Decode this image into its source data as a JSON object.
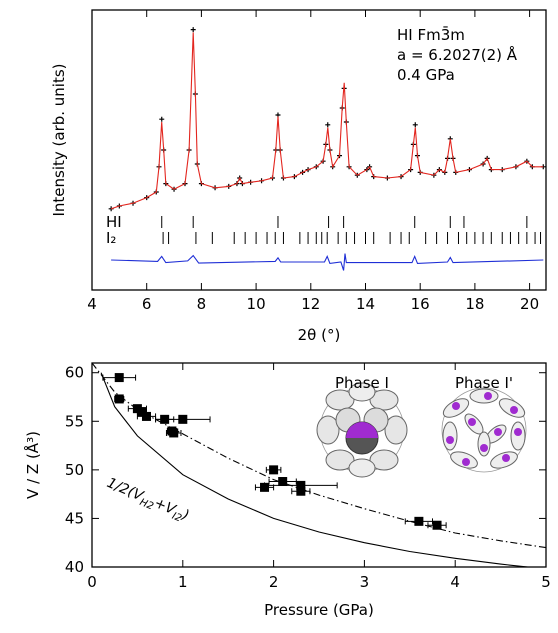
{
  "chart_data": [
    {
      "type": "line",
      "ylabel": "Intensity (arb. units)",
      "xlabel": "2θ (°)",
      "xlim": [
        4,
        20.6
      ],
      "ylim": [
        0,
        100
      ],
      "xticks": [
        4,
        6,
        8,
        10,
        12,
        14,
        16,
        18,
        20
      ],
      "annotations": [
        "HI Fm3̄m",
        "a = 6.2027(2) Å",
        "0.4 GPa"
      ],
      "x": [
        4.7,
        5.0,
        5.5,
        6.0,
        6.35,
        6.45,
        6.55,
        6.62,
        6.7,
        7.0,
        7.4,
        7.55,
        7.7,
        7.78,
        7.85,
        8.0,
        8.5,
        9.0,
        9.3,
        9.4,
        9.5,
        9.8,
        10.2,
        10.6,
        10.72,
        10.8,
        10.88,
        11.0,
        11.4,
        11.7,
        11.9,
        12.2,
        12.45,
        12.55,
        12.62,
        12.7,
        12.8,
        13.05,
        13.15,
        13.22,
        13.3,
        13.4,
        13.7,
        14.05,
        14.15,
        14.3,
        14.8,
        15.3,
        15.65,
        15.75,
        15.82,
        15.9,
        16.0,
        16.5,
        16.7,
        16.9,
        17.0,
        17.1,
        17.2,
        17.3,
        17.8,
        18.3,
        18.45,
        18.6,
        19.0,
        19.5,
        19.9,
        20.1,
        20.5
      ],
      "series": [
        {
          "style": "points",
          "color": "#000000",
          "values": [
            29,
            30,
            31,
            33,
            35,
            44,
            61,
            50,
            38,
            36,
            38,
            50,
            93,
            70,
            45,
            38,
            36.5,
            37,
            38,
            40,
            38,
            38.5,
            39,
            40,
            50,
            62.5,
            50,
            40,
            40.5,
            42,
            43,
            44,
            46,
            52,
            59,
            50,
            44,
            48,
            65,
            72,
            60,
            44,
            41,
            43,
            44,
            40.5,
            40,
            40.5,
            43,
            52,
            59,
            48,
            42,
            41,
            43,
            42,
            47,
            54,
            47,
            42,
            43,
            45,
            47,
            43,
            43,
            44,
            46,
            44,
            44
          ]
        },
        {
          "style": "line",
          "color": "#e3261f",
          "values": [
            29,
            30,
            31,
            33,
            35,
            44,
            60,
            50,
            38,
            36,
            38,
            50,
            92,
            70,
            45,
            38,
            36.5,
            37,
            38,
            40,
            38,
            38.5,
            39,
            40,
            50,
            62,
            50,
            40,
            40.5,
            42,
            43,
            44,
            46,
            52,
            58,
            50,
            44,
            48,
            65,
            74,
            60,
            44,
            41,
            43,
            44,
            40.5,
            40,
            40.5,
            43,
            52,
            58,
            48,
            42,
            41,
            43,
            42,
            47,
            54,
            47,
            42,
            43,
            45,
            47,
            43,
            43,
            44,
            46,
            44,
            44
          ]
        },
        {
          "style": "line",
          "color": "#1f2fd6",
          "x": [
            4.7,
            6.4,
            6.55,
            6.7,
            7.5,
            7.7,
            7.9,
            10.7,
            10.8,
            10.9,
            12.5,
            12.6,
            12.7,
            13.1,
            13.2,
            13.25,
            13.3,
            15.7,
            15.8,
            15.9,
            17.0,
            17.1,
            17.2,
            20.5
          ],
          "values": [
            10.7,
            10.2,
            12,
            9.8,
            10.4,
            12.3,
            9.6,
            10.2,
            11.5,
            10,
            10,
            12,
            9.5,
            10,
            7,
            13,
            9.8,
            9.8,
            12,
            9.5,
            10,
            11.6,
            9.8,
            10.7
          ]
        }
      ],
      "reflections": [
        {
          "label": "HI",
          "positions": [
            6.55,
            7.7,
            10.8,
            12.65,
            13.2,
            15.8,
            17.1,
            17.6,
            19.9
          ]
        },
        {
          "label": "I₂",
          "positions": [
            6.6,
            6.8,
            7.8,
            8.4,
            9.2,
            9.6,
            10.0,
            10.4,
            10.7,
            11.0,
            11.6,
            11.9,
            12.2,
            12.4,
            12.6,
            13.0,
            13.3,
            13.6,
            14.0,
            14.3,
            14.9,
            15.3,
            15.6,
            16.2,
            16.6,
            17.0,
            17.4,
            17.7,
            18.0,
            18.3,
            18.6,
            19.0,
            19.3,
            19.6,
            19.9,
            20.2,
            20.4
          ]
        }
      ]
    },
    {
      "type": "scatter",
      "xlabel": "Pressure (GPa)",
      "ylabel": "V / Z (Å³)",
      "xlim": [
        0,
        5
      ],
      "ylim": [
        40,
        61
      ],
      "xticks": [
        0,
        1,
        2,
        3,
        4,
        5
      ],
      "yticks": [
        40,
        45,
        50,
        55,
        60
      ],
      "points": {
        "color": "#000000",
        "x": [
          0.3,
          0.3,
          0.5,
          0.55,
          0.6,
          0.8,
          1.0,
          0.9,
          0.88,
          2.0,
          1.9,
          2.1,
          2.3,
          2.3,
          3.6,
          3.8
        ],
        "values": [
          59.5,
          57.3,
          56.3,
          56.0,
          55.5,
          55.2,
          55.2,
          53.8,
          54.0,
          50.0,
          48.2,
          48.8,
          48.4,
          47.8,
          44.7,
          44.3
        ],
        "xerr": [
          0.18,
          0.05,
          0.1,
          0.05,
          0.1,
          0.1,
          0.3,
          0.08,
          0.05,
          0.08,
          0.1,
          0.15,
          0.4,
          0.1,
          0.15,
          0.1
        ]
      },
      "curves": [
        {
          "style": "dashdot",
          "x": [
            0,
            0.25,
            0.5,
            1,
            1.5,
            2,
            2.5,
            3,
            3.5,
            4,
            4.5,
            5
          ],
          "values": [
            61,
            58,
            56.2,
            53.7,
            51.2,
            49,
            47.4,
            46,
            44.7,
            43.5,
            42.7,
            42
          ]
        },
        {
          "style": "solid",
          "x": [
            0.1,
            0.25,
            0.5,
            1,
            1.5,
            2,
            2.5,
            3,
            3.5,
            4,
            4.5,
            4.8
          ],
          "values": [
            60,
            56.5,
            53.5,
            49.5,
            47,
            45,
            43.6,
            42.5,
            41.6,
            40.9,
            40.3,
            40
          ]
        }
      ],
      "curve_label": [
        "1/2(V",
        "H2",
        "+V",
        "I2",
        ")"
      ],
      "insets": [
        "Phase I",
        "Phase I'"
      ]
    }
  ]
}
